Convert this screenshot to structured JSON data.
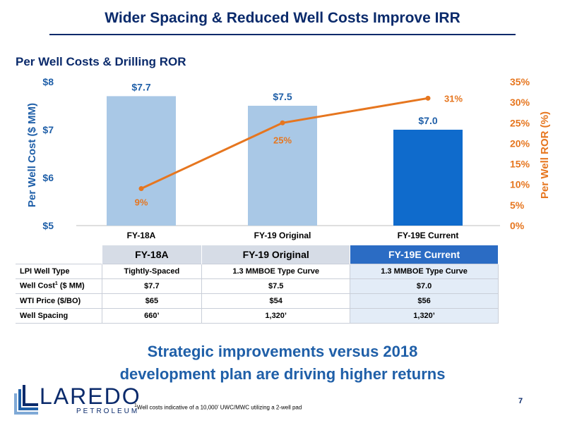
{
  "slide": {
    "title": "Wider Spacing & Reduced Well Costs Improve IRR",
    "heading": "Per Well Costs & Drilling ROR",
    "tagline_line1": "Strategic improvements versus 2018",
    "tagline_line2": "development plan are driving higher returns",
    "footnote_mark": "1",
    "footnote_text": "Well costs indicative of a 10,000’ UWC/MWC utilizing a 2-well pad",
    "page_number": "7",
    "logo_word": "LAREDO",
    "logo_sub": "PETROLEUM"
  },
  "colors": {
    "navy": "#0a2a6b",
    "bar_light": "#a9c8e6",
    "bar_current": "#0f6bcc",
    "line": "#e6761f",
    "axis_blue": "#1f5fa8"
  },
  "chart_data": {
    "type": "bar",
    "categories": [
      "FY-18A",
      "FY-19 Original",
      "FY-19E Current"
    ],
    "series": [
      {
        "type": "bar",
        "axis": "left",
        "values": [
          7.7,
          7.5,
          7.0
        ],
        "labels": [
          "$7.7",
          "$7.5",
          "$7.0"
        ]
      },
      {
        "type": "line",
        "axis": "right",
        "values": [
          9,
          25,
          31
        ],
        "labels": [
          "9%",
          "25%",
          "31%"
        ]
      }
    ],
    "ylabel": "Per Well Cost ($ MM)",
    "ylim": [
      5,
      8
    ],
    "yticks": [
      "$5",
      "$6",
      "$7",
      "$8"
    ],
    "y2label": "Per Well ROR (%)",
    "y2lim": [
      0,
      35
    ],
    "y2ticks": [
      "0%",
      "5%",
      "10%",
      "15%",
      "20%",
      "25%",
      "30%",
      "35%"
    ],
    "grid": false,
    "legend": "none"
  },
  "table": {
    "headers": [
      "FY-18A",
      "FY-19 Original",
      "FY-19E Current"
    ],
    "rows": [
      {
        "label": "LPI Well Type",
        "values": [
          "Tightly-Spaced",
          "1.3 MMBOE Type Curve",
          "1.3 MMBOE Type Curve"
        ]
      },
      {
        "label": "Well Cost",
        "label_sup": "1",
        "label_suffix": " ($ MM)",
        "values": [
          "$7.7",
          "$7.5",
          "$7.0"
        ]
      },
      {
        "label": "WTI Price ($/BO)",
        "values": [
          "$65",
          "$54",
          "$56"
        ]
      },
      {
        "label": "Well Spacing",
        "values": [
          "660’",
          "1,320’",
          "1,320’"
        ]
      }
    ]
  }
}
